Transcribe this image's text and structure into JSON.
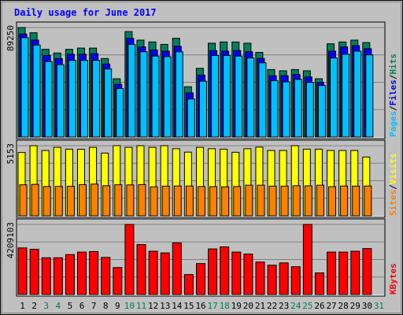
{
  "title": "Daily usage for June 2017",
  "colors": {
    "background": "#c0c0c0",
    "plot_bg": "#c0c0c0",
    "gridline": "#808080",
    "title": "#0000ff",
    "hits": "#00805c",
    "files": "#0000ff",
    "pages": "#00c0ff",
    "visits": "#ffff00",
    "sites": "#ff8000",
    "kbytes": "#ff0000",
    "weekday_label": "#000000",
    "weekend_label": "#00805c"
  },
  "chart_data": {
    "type": "bar",
    "title": "Daily usage for June 2017",
    "days": [
      "1",
      "2",
      "3",
      "4",
      "5",
      "6",
      "7",
      "8",
      "9",
      "10",
      "11",
      "12",
      "13",
      "14",
      "15",
      "16",
      "17",
      "18",
      "19",
      "20",
      "21",
      "22",
      "23",
      "24",
      "25",
      "26",
      "27",
      "28",
      "29",
      "30",
      "31"
    ],
    "weekend_days": [
      "3",
      "4",
      "10",
      "11",
      "17",
      "18",
      "24",
      "25",
      "31"
    ],
    "panels": [
      {
        "name": "hits-files-pages",
        "max_label": "89250",
        "max": 89250,
        "legend": [
          {
            "text": "Pages",
            "color": "#00c0ff"
          },
          {
            "text": "Files",
            "color": "#0000ff"
          },
          {
            "text": "Hits",
            "color": "#00805c"
          }
        ],
        "series": [
          {
            "name": "Hits",
            "color": "#00805c",
            "values": [
              89250,
              85000,
              71500,
              68500,
              71500,
              72500,
              72500,
              64000,
              47500,
              86000,
              79000,
              77500,
              75500,
              80500,
              41000,
              56000,
              76500,
              77500,
              77500,
              76500,
              69000,
              55000,
              54000,
              55000,
              54000,
              47500,
              76000,
              77500,
              79000,
              77000,
              null
            ]
          },
          {
            "name": "Files",
            "color": "#0000ff",
            "values": [
              84000,
              79000,
              66500,
              64000,
              67500,
              67500,
              68000,
              59500,
              43000,
              80500,
              73500,
              71000,
              70000,
              74000,
              36000,
              50500,
              70500,
              70000,
              70500,
              69500,
              64000,
              50000,
              50000,
              51000,
              49000,
              44500,
              70000,
              73500,
              74500,
              72000,
              null
            ]
          },
          {
            "name": "Pages",
            "color": "#00c0ff",
            "values": [
              81000,
              75000,
              61500,
              59000,
              62500,
              62500,
              62500,
              55500,
              39500,
              75500,
              69500,
              66000,
              65500,
              69500,
              31000,
              45500,
              66500,
              66500,
              66000,
              64500,
              60500,
              46000,
              45000,
              47000,
              44500,
              42000,
              64500,
              67500,
              70000,
              67000,
              null
            ]
          }
        ]
      },
      {
        "name": "visits-sites",
        "max_label": "5153",
        "max": 5153,
        "legend": [
          {
            "text": "Sites",
            "color": "#ff8000"
          },
          {
            "text": "/",
            "color": "#000000"
          },
          {
            "text": "Visits",
            "color": "#ffff00"
          }
        ],
        "series": [
          {
            "name": "Visits",
            "color": "#ffff00",
            "values": [
              4650,
              5153,
              4800,
              5030,
              4900,
              4890,
              5030,
              4610,
              5153,
              5030,
              5153,
              5030,
              5153,
              4930,
              4680,
              5030,
              4930,
              4900,
              4670,
              4930,
              5050,
              4800,
              4800,
              5153,
              4900,
              4900,
              4800,
              4800,
              4800,
              4320,
              null
            ]
          },
          {
            "name": "Sites",
            "color": "#ff8000",
            "values": [
              2280,
              2310,
              2150,
              2160,
              2170,
              2290,
              2330,
              2210,
              2280,
              2270,
              2290,
              2130,
              2180,
              2190,
              2190,
              2150,
              2140,
              2130,
              2150,
              2250,
              2250,
              2180,
              2180,
              2210,
              2200,
              2250,
              2140,
              2190,
              2180,
              2190,
              null
            ]
          }
        ]
      },
      {
        "name": "kbytes",
        "max_label": "4209103",
        "max": 4209103,
        "legend": [
          {
            "text": "KBytes",
            "color": "#ff0000"
          }
        ],
        "series": [
          {
            "name": "KBytes",
            "color": "#ff0000",
            "values": [
              2800000,
              2720000,
              2210000,
              2210000,
              2400000,
              2550000,
              2580000,
              2230000,
              1620000,
              4209103,
              3000000,
              2600000,
              2500000,
              3100000,
              1200000,
              1860000,
              2740000,
              2860000,
              2550000,
              2430000,
              1950000,
              1760000,
              1900000,
              1670000,
              4209103,
              1300000,
              2550000,
              2550000,
              2600000,
              2760000,
              null
            ]
          }
        ]
      }
    ]
  }
}
